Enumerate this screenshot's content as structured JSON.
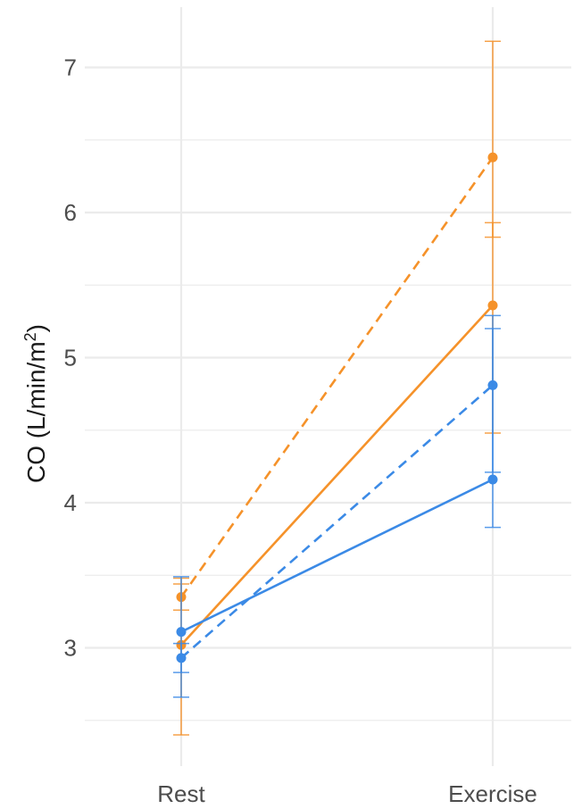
{
  "chart_data": {
    "type": "line",
    "categories": [
      "Rest",
      "Exercise"
    ],
    "ylabel": {
      "main": "CO (L/min/m",
      "sup": "2",
      "close": ")"
    },
    "ylim": [
      2.45,
      7.4
    ],
    "yticks": [
      "3",
      "4",
      "5",
      "6",
      "7"
    ],
    "grid": true,
    "legend": "none",
    "colors": {
      "orange": "#f5922a",
      "blue": "#3b8ae6",
      "grid": "#ebebeb"
    },
    "series": [
      {
        "color": "orange",
        "dash": true,
        "values": [
          3.35,
          6.38
        ],
        "err_low": [
          3.26,
          5.83
        ],
        "err_high": [
          3.44,
          7.18
        ]
      },
      {
        "color": "orange",
        "dash": false,
        "values": [
          3.02,
          5.36
        ],
        "err_low": [
          2.4,
          4.48
        ],
        "err_high": [
          3.48,
          5.93
        ]
      },
      {
        "color": "blue",
        "dash": true,
        "values": [
          2.93,
          4.81
        ],
        "err_low": [
          2.83,
          4.21
        ],
        "err_high": [
          3.03,
          5.29
        ]
      },
      {
        "color": "blue",
        "dash": false,
        "values": [
          3.11,
          4.16
        ],
        "err_low": [
          2.66,
          3.83
        ],
        "err_high": [
          3.49,
          5.2
        ]
      }
    ]
  }
}
